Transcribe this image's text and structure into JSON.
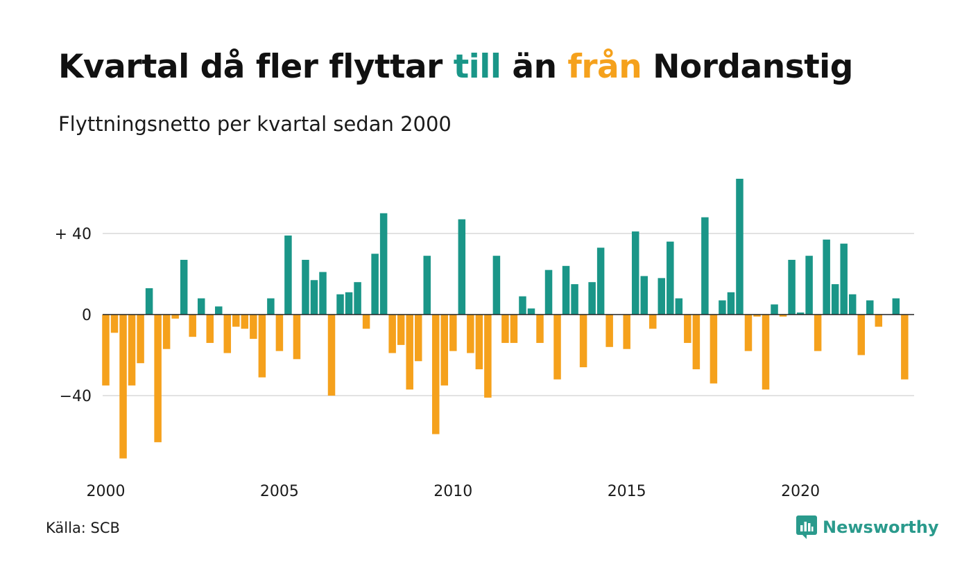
{
  "title": {
    "part1": "Kvartal då fler flyttar ",
    "till": "till",
    "part2": " än ",
    "fran": "från",
    "part3": " Nordanstig"
  },
  "subtitle": "Flyttningsnetto per kvartal sedan 2000",
  "source": "Källa: SCB",
  "brand": {
    "name": "Newsworthy",
    "icon": "newsworthy-logo-icon"
  },
  "colors": {
    "positive": "#1a9688",
    "negative": "#f5a11c",
    "grid": "#e2e2e2",
    "baseline": "#222222"
  },
  "chart_data": {
    "type": "bar",
    "title": "Kvartal då fler flyttar till än från Nordanstig",
    "subtitle": "Flyttningsnetto per kvartal sedan 2000",
    "xlabel": "",
    "ylabel": "",
    "ylim": [
      -72,
      68
    ],
    "x_start": "2000 Q1",
    "y_ticks": [
      {
        "value": 40,
        "label": "+ 40"
      },
      {
        "value": 0,
        "label": "0"
      },
      {
        "value": -40,
        "label": "−40"
      }
    ],
    "x_ticks": [
      "2000",
      "2005",
      "2010",
      "2015",
      "2020"
    ],
    "grid": true,
    "legend": "none",
    "values": [
      -35,
      -9,
      -71,
      -35,
      -24,
      13,
      -63,
      -17,
      -2,
      27,
      -11,
      8,
      -14,
      4,
      -19,
      -6,
      -7,
      -12,
      -31,
      8,
      -18,
      39,
      -22,
      27,
      17,
      21,
      -40,
      10,
      11,
      16,
      -7,
      30,
      50,
      -19,
      -15,
      -37,
      -23,
      29,
      -59,
      -35,
      -18,
      47,
      -19,
      -27,
      -41,
      29,
      -14,
      -14,
      9,
      3,
      -14,
      22,
      -32,
      24,
      15,
      -26,
      16,
      33,
      -16,
      0,
      -17,
      41,
      19,
      -7,
      18,
      36,
      8,
      -14,
      -27,
      48,
      -34,
      7,
      11,
      67,
      -18,
      -1,
      -37,
      5,
      -1,
      27,
      1,
      29,
      -18,
      37,
      15,
      35,
      10,
      -20,
      7,
      -6,
      0,
      8,
      -32
    ]
  }
}
